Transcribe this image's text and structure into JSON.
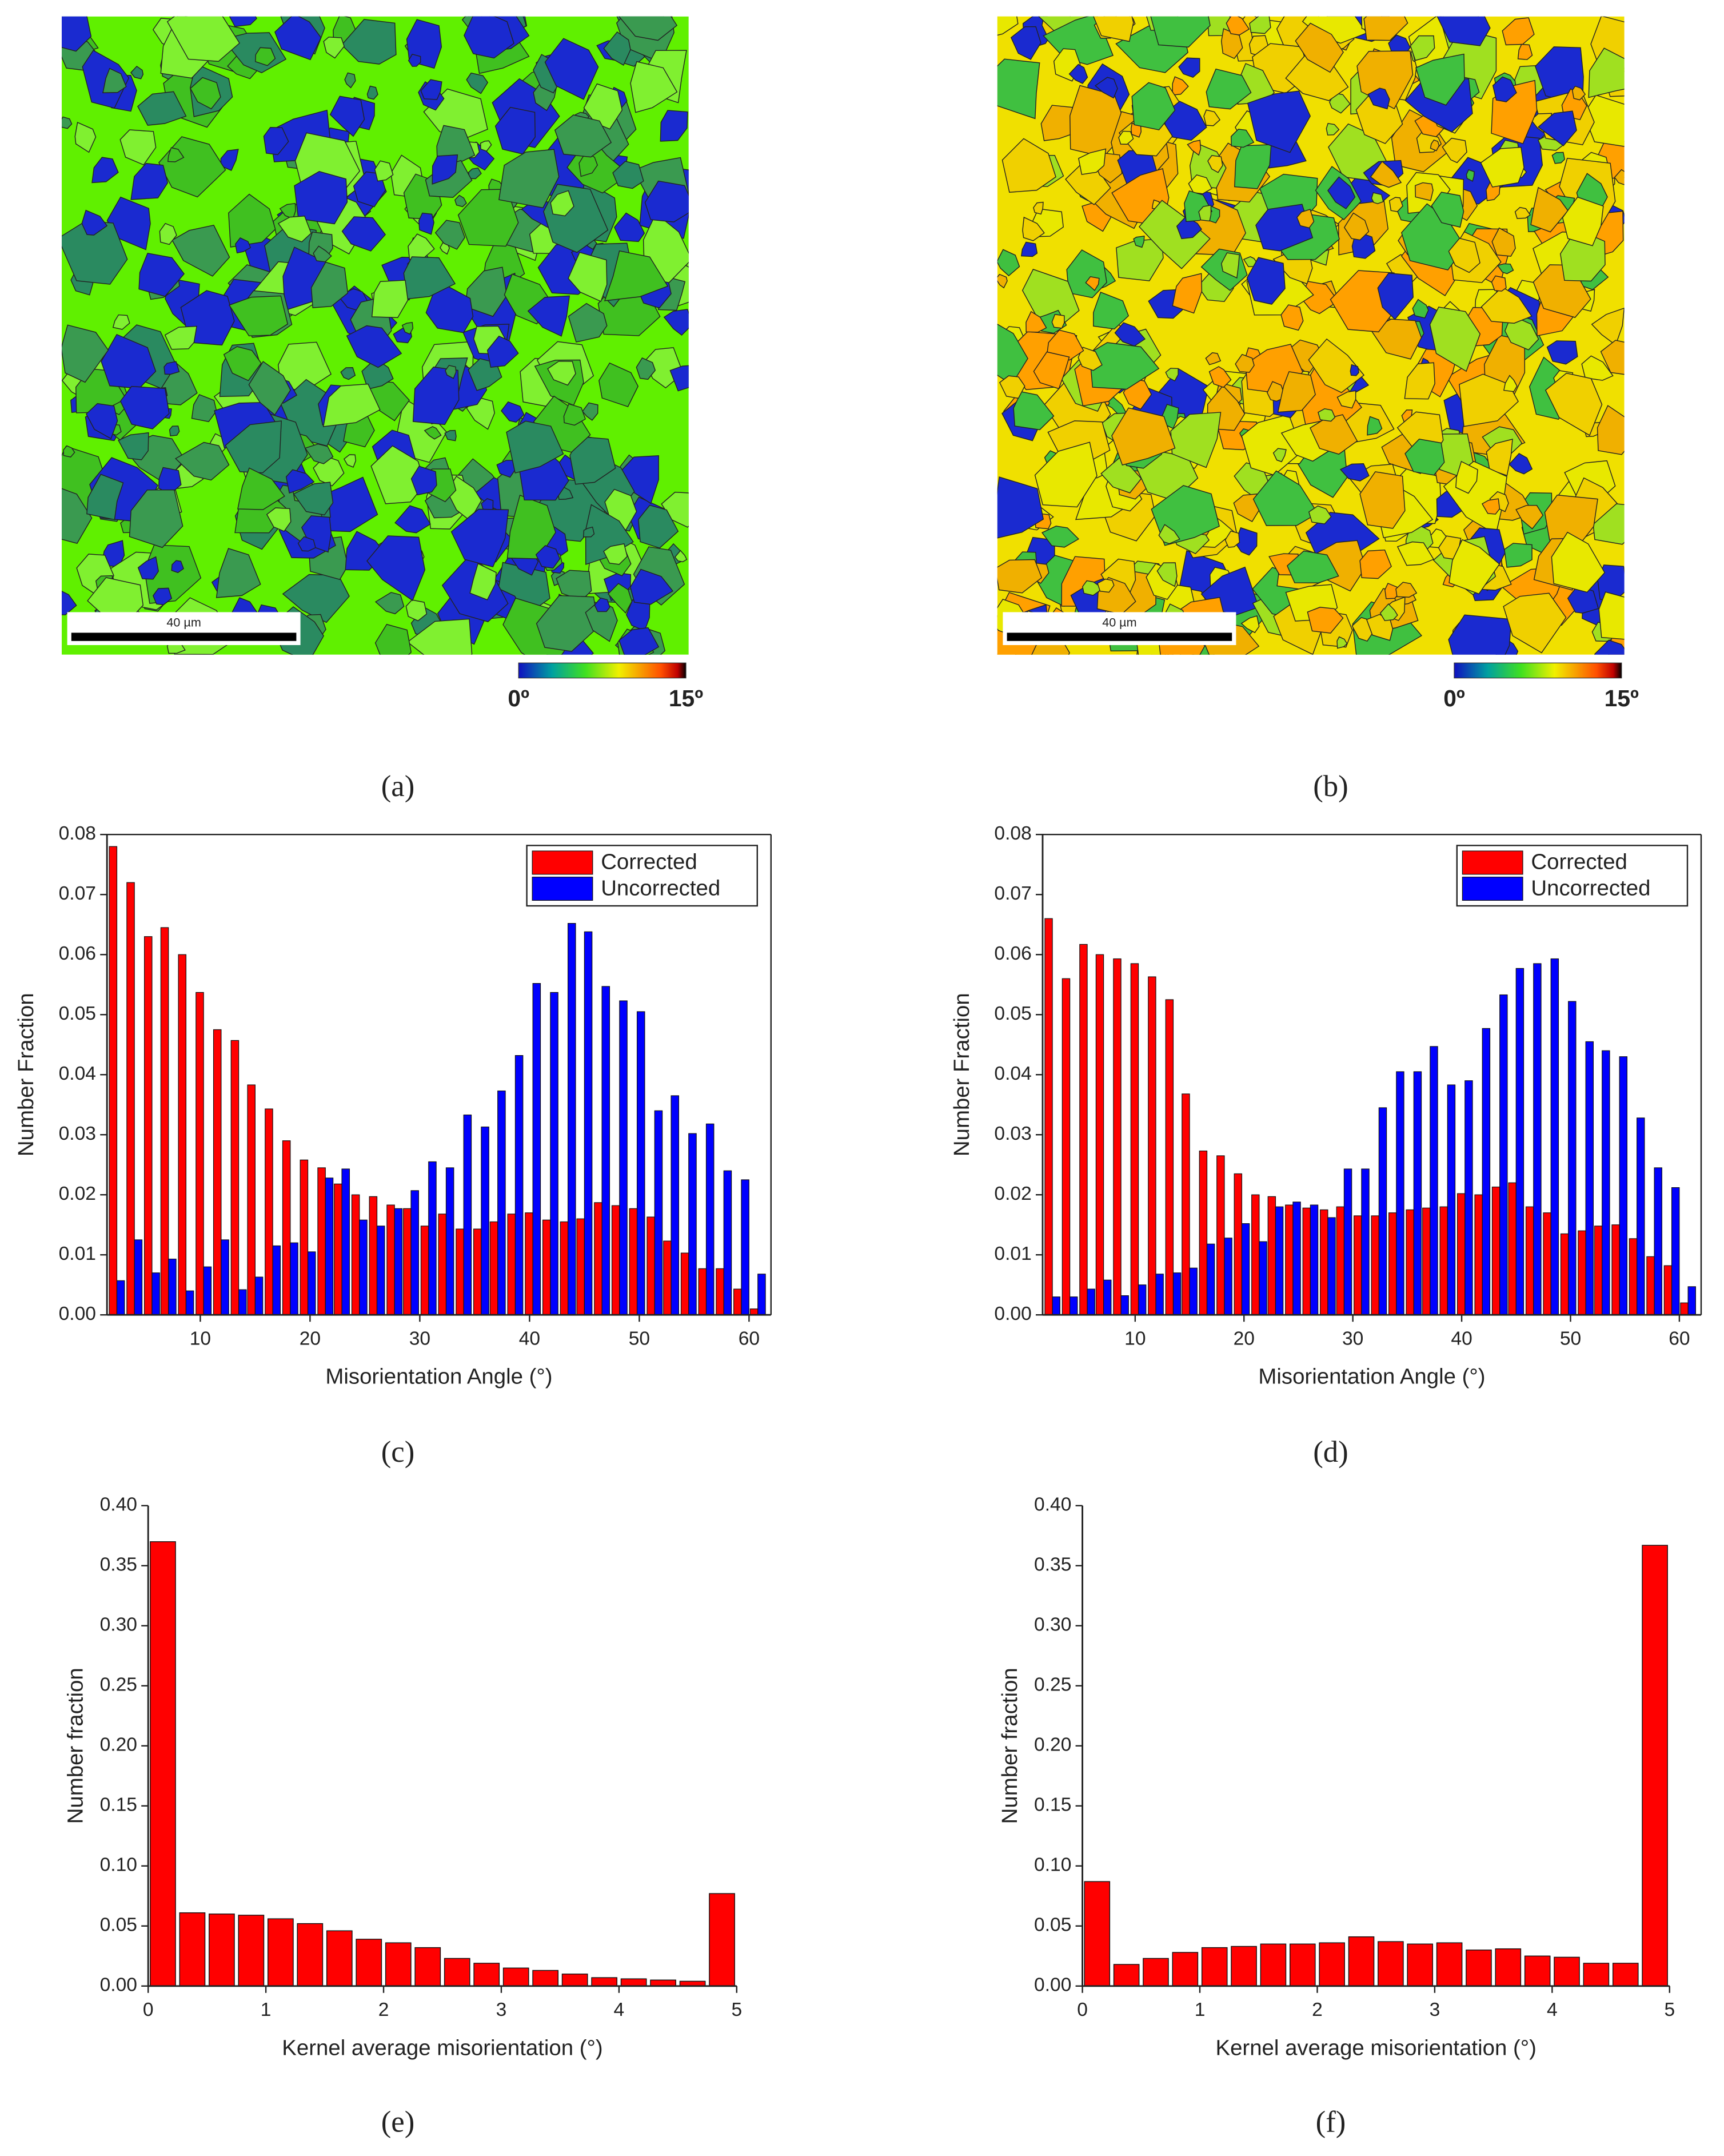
{
  "maps": [
    {
      "scale_bar_label": "40 µm",
      "colorbar_min_label": "0º",
      "colorbar_max_label": "15º"
    },
    {
      "scale_bar_label": "40 µm",
      "colorbar_min_label": "0º",
      "colorbar_max_label": "15º"
    }
  ],
  "panel_labels": [
    "(a)",
    "(b)",
    "(c)",
    "(d)",
    "(e)",
    "(f)"
  ],
  "chart_data": [
    {
      "type": "bar",
      "xlabel": "Misorientation Angle (°)",
      "ylabel": "Number Fraction",
      "legend": "upper right",
      "x": [
        2.4,
        4.0,
        5.6,
        7.1,
        8.7,
        10.3,
        11.9,
        13.5,
        15.0,
        16.6,
        18.2,
        19.8,
        21.4,
        22.9,
        24.5,
        26.1,
        27.7,
        29.2,
        30.8,
        32.4,
        34.0,
        35.6,
        37.1,
        38.7,
        40.3,
        41.9,
        43.5,
        45.0,
        46.6,
        48.2,
        49.8,
        51.4,
        52.9,
        54.5,
        56.1,
        57.7,
        59.3,
        60.8
      ],
      "series": [
        {
          "name": "Corrected",
          "color": "#ff0000",
          "values": [
            0.078,
            0.072,
            0.063,
            0.0645,
            0.06,
            0.0537,
            0.0475,
            0.0457,
            0.0383,
            0.0343,
            0.029,
            0.0258,
            0.0245,
            0.0218,
            0.02,
            0.0197,
            0.0183,
            0.0177,
            0.0148,
            0.0168,
            0.0143,
            0.0143,
            0.0155,
            0.0168,
            0.017,
            0.0158,
            0.0155,
            0.016,
            0.0187,
            0.0182,
            0.0177,
            0.0163,
            0.0123,
            0.0103,
            0.0077,
            0.0077,
            0.0043,
            0.001
          ]
        },
        {
          "name": "Uncorrected",
          "color": "#0000ff",
          "values": [
            0.0057,
            0.0125,
            0.007,
            0.0093,
            0.004,
            0.008,
            0.0125,
            0.0042,
            0.0063,
            0.0115,
            0.012,
            0.0105,
            0.0228,
            0.0243,
            0.0158,
            0.0148,
            0.0177,
            0.0207,
            0.0255,
            0.0245,
            0.0333,
            0.0313,
            0.0373,
            0.0432,
            0.0552,
            0.0537,
            0.0652,
            0.0638,
            0.0547,
            0.0523,
            0.0505,
            0.034,
            0.0365,
            0.0302,
            0.0318,
            0.024,
            0.0225,
            0.0068
          ]
        }
      ],
      "xlim": [
        1.5,
        62
      ],
      "xticks": [
        10,
        20,
        30,
        40,
        50,
        60
      ],
      "ylim": [
        0,
        0.08
      ],
      "yticks": [
        {
          "value": 0,
          "label": "0.00"
        },
        0.01,
        0.02,
        0.03,
        0.04,
        0.05,
        0.06,
        0.07,
        0.08
      ]
    },
    {
      "type": "bar",
      "xlabel": "Misorientation Angle (°)",
      "ylabel": "Number Fraction",
      "legend": "upper right",
      "x": [
        2.4,
        4.0,
        5.6,
        7.1,
        8.7,
        10.3,
        11.9,
        13.5,
        15.0,
        16.6,
        18.2,
        19.8,
        21.4,
        22.9,
        24.5,
        26.1,
        27.7,
        29.2,
        30.8,
        32.4,
        34.0,
        35.6,
        37.1,
        38.7,
        40.3,
        41.9,
        43.5,
        45.0,
        46.6,
        48.2,
        49.8,
        51.4,
        52.9,
        54.5,
        56.1,
        57.7,
        59.3,
        60.8
      ],
      "series": [
        {
          "name": "Corrected",
          "color": "#ff0000",
          "values": [
            0.066,
            0.056,
            0.0617,
            0.06,
            0.0593,
            0.0585,
            0.0563,
            0.0525,
            0.0368,
            0.0273,
            0.0265,
            0.0235,
            0.02,
            0.0197,
            0.0183,
            0.0178,
            0.0175,
            0.018,
            0.0165,
            0.0165,
            0.017,
            0.0175,
            0.0178,
            0.018,
            0.0202,
            0.02,
            0.0213,
            0.022,
            0.018,
            0.017,
            0.0135,
            0.014,
            0.0148,
            0.015,
            0.0127,
            0.0097,
            0.0082,
            0.002
          ]
        },
        {
          "name": "Uncorrected",
          "color": "#0000ff",
          "values": [
            0.003,
            0.003,
            0.0043,
            0.0058,
            0.0032,
            0.005,
            0.0068,
            0.007,
            0.0078,
            0.0118,
            0.0128,
            0.0152,
            0.0122,
            0.018,
            0.0188,
            0.0183,
            0.0162,
            0.0243,
            0.0243,
            0.0345,
            0.0405,
            0.0405,
            0.0447,
            0.0383,
            0.039,
            0.0477,
            0.0533,
            0.0577,
            0.0585,
            0.0593,
            0.0522,
            0.0455,
            0.044,
            0.043,
            0.0328,
            0.0245,
            0.0212,
            0.0047
          ]
        }
      ],
      "xlim": [
        1.5,
        62
      ],
      "xticks": [
        10,
        20,
        30,
        40,
        50,
        60
      ],
      "ylim": [
        0,
        0.08
      ],
      "yticks": [
        {
          "value": 0,
          "label": "0.00"
        },
        0.01,
        0.02,
        0.03,
        0.04,
        0.05,
        0.06,
        0.07,
        0.08
      ]
    },
    {
      "type": "histogram",
      "xlabel": "Kernel average misorientation (°)",
      "ylabel": "Number fraction",
      "color": "#ff0000",
      "bins": [
        0,
        0.25,
        0.5,
        0.75,
        1,
        1.25,
        1.5,
        1.75,
        2,
        2.25,
        2.5,
        2.75,
        3,
        3.25,
        3.5,
        3.75,
        4,
        4.25,
        4.5,
        4.75,
        5
      ],
      "values": [
        0.37,
        0.061,
        0.06,
        0.059,
        0.056,
        0.052,
        0.046,
        0.039,
        0.036,
        0.032,
        0.023,
        0.019,
        0.015,
        0.013,
        0.01,
        0.007,
        0.006,
        0.005,
        0.004,
        0.077
      ],
      "xlim": [
        0,
        5
      ],
      "xticks": [
        0,
        1,
        2,
        3,
        4,
        5
      ],
      "ylim": [
        0,
        0.4
      ],
      "yticks": [
        {
          "value": 0,
          "label": "0.00"
        },
        0.05,
        {
          "value": 0.1,
          "label": "0.10"
        },
        0.15,
        {
          "value": 0.2,
          "label": "0.20"
        },
        0.25,
        {
          "value": 0.3,
          "label": "0.30"
        },
        0.35,
        {
          "value": 0.4,
          "label": "0.40"
        }
      ]
    },
    {
      "type": "histogram",
      "xlabel": "Kernel average misorientation (°)",
      "ylabel": "Number fraction",
      "color": "#ff0000",
      "bins": [
        0,
        0.25,
        0.5,
        0.75,
        1,
        1.25,
        1.5,
        1.75,
        2,
        2.25,
        2.5,
        2.75,
        3,
        3.25,
        3.5,
        3.75,
        4,
        4.25,
        4.5,
        4.75,
        5
      ],
      "values": [
        0.087,
        0.018,
        0.023,
        0.028,
        0.032,
        0.033,
        0.035,
        0.035,
        0.036,
        0.041,
        0.037,
        0.035,
        0.036,
        0.03,
        0.031,
        0.025,
        0.024,
        0.019,
        0.019,
        0.367
      ],
      "xlim": [
        0,
        5
      ],
      "xticks": [
        0,
        1,
        2,
        3,
        4,
        5
      ],
      "ylim": [
        0,
        0.4
      ],
      "yticks": [
        {
          "value": 0,
          "label": "0.00"
        },
        0.05,
        {
          "value": 0.1,
          "label": "0.10"
        },
        0.15,
        {
          "value": 0.2,
          "label": "0.20"
        },
        0.25,
        {
          "value": 0.3,
          "label": "0.30"
        },
        0.35,
        {
          "value": 0.4,
          "label": "0.40"
        }
      ]
    }
  ]
}
